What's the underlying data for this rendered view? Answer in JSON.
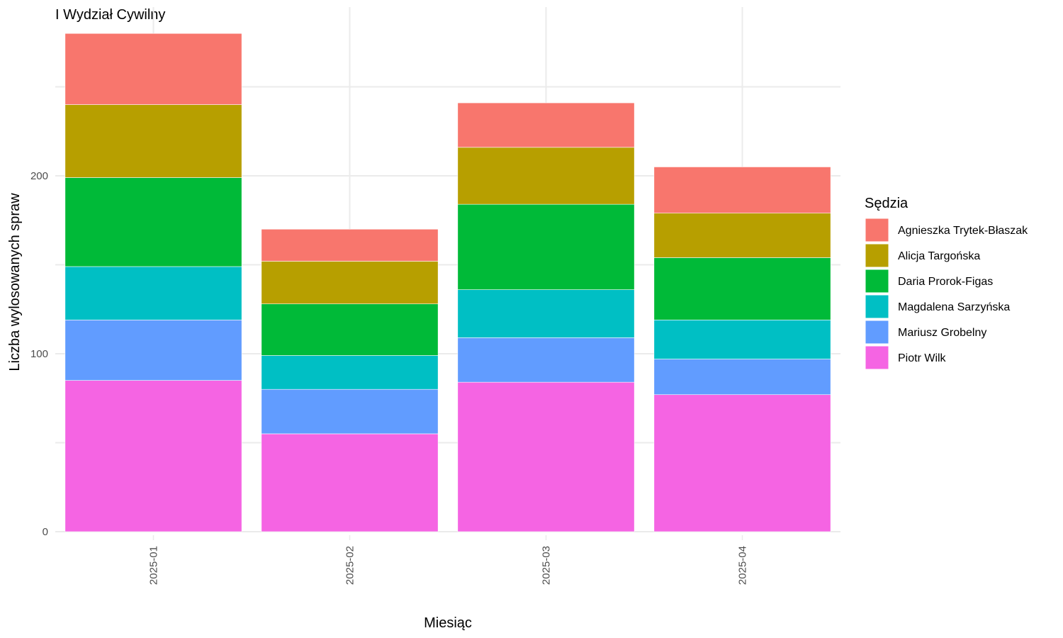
{
  "chart_data": {
    "type": "bar",
    "stacked": true,
    "title": "I Wydział Cywilny",
    "xlabel": "Miesiąc",
    "ylabel": "Liczba wylosowanych spraw",
    "categories": [
      "2025-01",
      "2025-02",
      "2025-03",
      "2025-04"
    ],
    "ylim": [
      0,
      295
    ],
    "yticks": [
      0,
      100,
      200
    ],
    "grid": true,
    "legend": {
      "title": "Sędzia",
      "placement": "right"
    },
    "series": [
      {
        "name": "Piotr Wilk",
        "color": "#F564E3",
        "values": [
          85,
          55,
          84,
          77
        ]
      },
      {
        "name": "Mariusz Grobelny",
        "color": "#619CFF",
        "values": [
          34,
          25,
          25,
          20
        ]
      },
      {
        "name": "Magdalena Sarzyńska",
        "color": "#00BFC4",
        "values": [
          30,
          19,
          27,
          22
        ]
      },
      {
        "name": "Daria Prorok-Figas",
        "color": "#00BA38",
        "values": [
          50,
          29,
          48,
          35
        ]
      },
      {
        "name": "Alicja Targońska",
        "color": "#B79F00",
        "values": [
          41,
          24,
          32,
          25
        ]
      },
      {
        "name": "Agnieszka Trytek-Błaszak",
        "color": "#F8766D",
        "values": [
          40,
          18,
          25,
          26
        ]
      }
    ]
  }
}
